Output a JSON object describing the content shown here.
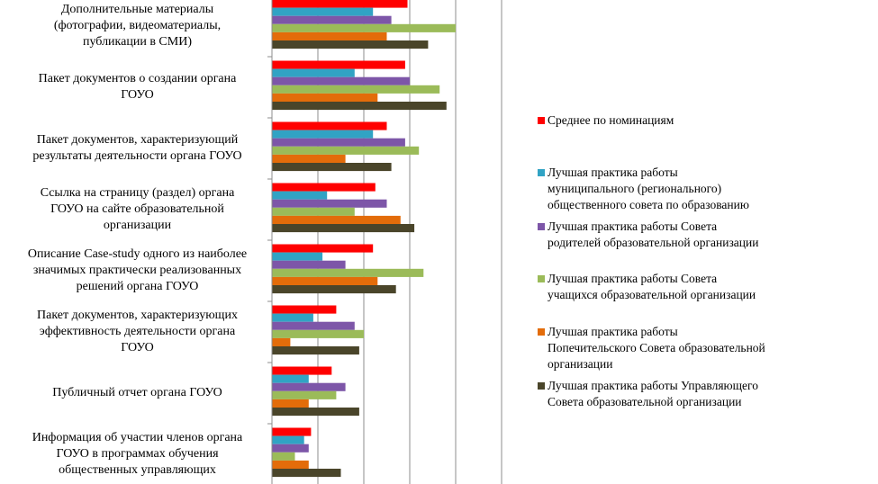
{
  "chart_data": {
    "type": "bar",
    "orientation": "horizontal",
    "categories": [
      "Дополнительные материалы (фотографии, видеоматериалы, публикации в СМИ)",
      "Пакет документов о создании органа ГОУО",
      "Пакет документов, характеризующий результаты деятельности органа ГОУО",
      "Ссылка на страницу (раздел) органа ГОУО на сайте образовательной организации",
      "Описание Case-study одного из наиболее значимых практически реализованных решений органа ГОУО",
      "Пакет документов, характеризующих эффективность деятельности органа ГОУО",
      "Публичный отчет органа ГОУО",
      "Информация об участии членов органа ГОУО в программах обучения общественных управляющих"
    ],
    "category_label_lines": [
      [
        "Дополнительные материалы",
        "(фотографии, видеоматериалы,",
        "публикации в СМИ)"
      ],
      [
        "Пакет документов о создании органа",
        "ГОУО"
      ],
      [
        "Пакет документов, характеризующий",
        "результаты деятельности органа ГОУО"
      ],
      [
        "Ссылка на страницу (раздел) органа",
        "ГОУО на сайте образовательной",
        "организации"
      ],
      [
        "Описание Case-study одного из наиболее",
        "значимых практически реализованных",
        "решений органа ГОУО"
      ],
      [
        "Пакет документов, характеризующих",
        "эффективность деятельности органа",
        "ГОУО"
      ],
      [
        "Публичный отчет органа ГОУО"
      ],
      [
        "Информация об участии членов органа",
        "ГОУО в программах обучения",
        "общественных управляющих"
      ]
    ],
    "series": [
      {
        "name": "Среднее по номинациям",
        "name_lines": [
          "Среднее по номинациям"
        ],
        "color": "#ff0000",
        "values": [
          2.95,
          2.9,
          2.5,
          2.25,
          2.2,
          1.4,
          1.3,
          0.85
        ]
      },
      {
        "name": "Лучшая практика работы муниципального (регионального) общественного совета по образованию",
        "name_lines": [
          "Лучшая практика работы",
          "муниципального (регионального)",
          "общественного совета по образованию"
        ],
        "color": "#31a3c4",
        "values": [
          2.2,
          1.8,
          2.2,
          1.2,
          1.1,
          0.9,
          0.8,
          0.7
        ]
      },
      {
        "name": "Лучшая практика работы Совета родителей образовательной организации",
        "name_lines": [
          "Лучшая практика работы Совета",
          "родителей образовательной организации"
        ],
        "color": "#7d56a8",
        "values": [
          2.6,
          3.0,
          2.9,
          2.5,
          1.6,
          1.8,
          1.6,
          0.8
        ]
      },
      {
        "name": "Лучшая практика работы Совета учащихся образовательной организации",
        "name_lines": [
          "Лучшая практика работы Совета",
          "учащихся образовательной организации"
        ],
        "color": "#9bbb59",
        "values": [
          4.0,
          3.65,
          3.2,
          1.8,
          3.3,
          2.0,
          1.4,
          0.5
        ]
      },
      {
        "name": "Лучшая практика работы Попечительского Совета образовательной организации",
        "name_lines": [
          "Лучшая практика работы",
          "Попечительского Совета образовательной",
          "организации"
        ],
        "color": "#e36c0a",
        "values": [
          2.5,
          2.3,
          1.6,
          2.8,
          2.3,
          0.4,
          0.8,
          0.8
        ]
      },
      {
        "name": "Лучшая практика работы Управляющего Совета образовательной организации",
        "name_lines": [
          "Лучшая практика работы Управляющего",
          "Совета образовательной организации"
        ],
        "color": "#4a452a",
        "values": [
          3.4,
          3.8,
          2.6,
          3.1,
          2.7,
          1.9,
          1.9,
          1.5
        ]
      }
    ],
    "xlim": [
      0,
      5
    ],
    "grid": true,
    "legend_position": "right"
  }
}
